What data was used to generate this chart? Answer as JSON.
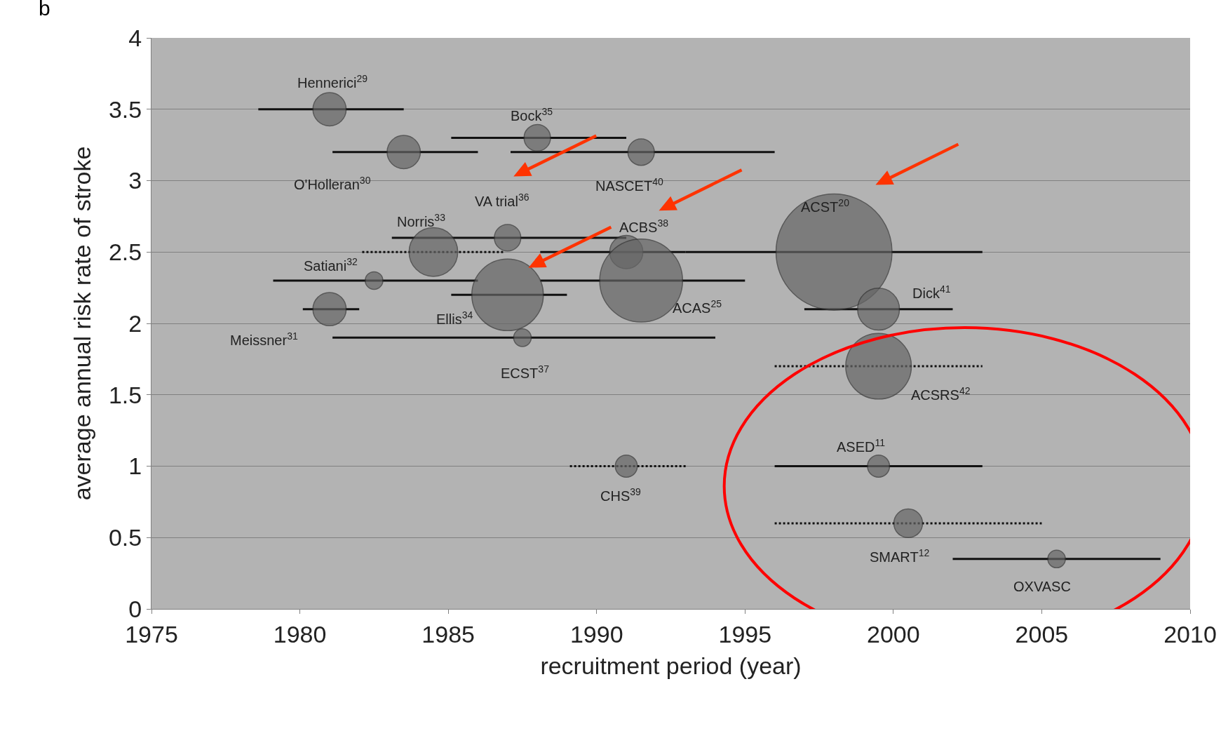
{
  "chart_data": {
    "type": "bubble",
    "xlabel": "recruitment period (year)",
    "ylabel": "average annual risk rate of stroke",
    "xlim": [
      1975,
      2010
    ],
    "xticks": [
      1975,
      1980,
      1985,
      1990,
      1995,
      2000,
      2005,
      2010
    ],
    "ylim": [
      0,
      4
    ],
    "yticks": [
      0,
      0.5,
      1,
      1.5,
      2,
      2.5,
      3,
      3.5,
      4
    ],
    "grid": "y",
    "series": [
      {
        "color": "#666666",
        "line_style": "solid",
        "x": [
          1981.0,
          1983.5,
          1988.0,
          1991.5,
          1987.0,
          1991.0,
          1998.0,
          1982.5,
          1987.0,
          1991.5,
          1981.0,
          1987.5,
          1999.5,
          1999.5,
          2005.5
        ],
        "values": [
          3.5,
          3.2,
          3.3,
          3.2,
          2.6,
          2.5,
          2.5,
          2.3,
          2.2,
          2.3,
          2.1,
          1.9,
          2.1,
          1.0,
          0.35
        ],
        "sizes": [
          0.082,
          0.082,
          0.052,
          0.052,
          0.052,
          0.082,
          1,
          0.023,
          0.38,
          0.51,
          0.082,
          0.023,
          0.13,
          0.036,
          0.023
        ],
        "xerrors": [
          [
            1978.6,
            1983.5
          ],
          [
            1981.1,
            1986.0
          ],
          [
            1985.1,
            1991.0
          ],
          [
            1987.1,
            1996.0
          ],
          [
            1983.1,
            1991.0
          ],
          [
            1988.1,
            1993.0
          ],
          [
            1993.0,
            2003.0
          ],
          [
            1979.1,
            1986.0
          ],
          [
            1985.1,
            1989.0
          ],
          [
            1988.1,
            1995.0
          ],
          [
            1980.1,
            1982.0
          ],
          [
            1981.1,
            1994.0
          ],
          [
            1997.0,
            2002.0
          ],
          [
            1996.0,
            2003.0
          ],
          [
            2002.0,
            2009.0
          ]
        ]
      },
      {
        "color": "#666666",
        "line_style": "dotted",
        "x": [
          1984.5,
          1999.5,
          1991.0,
          2000.5
        ],
        "values": [
          2.5,
          1.7,
          1.0,
          0.6
        ],
        "sizes": [
          0.176,
          0.32,
          0.036,
          0.061
        ],
        "xerrors": [
          [
            1982.1,
            1986.9
          ],
          [
            1996.0,
            2003.0
          ],
          [
            1989.1,
            1993.0
          ],
          [
            1996.0,
            2005.0
          ]
        ]
      }
    ],
    "annotations": [
      "b",
      {
        "text": "Hennerici$^{29}$",
        "x": 1981.0,
        "y": 3.5
      },
      {
        "text": "O'Holleran$^{30}$",
        "x": 1983.5,
        "y": 3.2
      },
      {
        "text": "Bock$^{35}$",
        "x": 1988.0,
        "y": 3.3
      },
      {
        "text": "NASCET$^{40}$",
        "x": 1991.5,
        "y": 3.2
      },
      {
        "text": "VA trial$^{36}$",
        "x": 1987.0,
        "y": 2.6
      },
      {
        "text": "Norris$^{33}$",
        "x": 1984.5,
        "y": 2.5
      },
      {
        "text": "ACBS$^{38}$",
        "x": 1991.0,
        "y": 2.5
      },
      {
        "text": "ACST$^{20}$",
        "x": 1998.0,
        "y": 2.5
      },
      {
        "text": "Satiani$^{32}$",
        "x": 1982.5,
        "y": 2.3
      },
      {
        "text": "Ellis$^{34}$",
        "x": 1987.0,
        "y": 2.2
      },
      {
        "text": "ACAS$^{25}$",
        "x": 1991.5,
        "y": 2.3
      },
      {
        "text": "Meissner$^{31}$",
        "x": 1981.0,
        "y": 2.1
      },
      {
        "text": "ECST$^{37}$",
        "x": 1987.5,
        "y": 1.9
      },
      {
        "text": "Dick$^{41}$",
        "x": 1999.5,
        "y": 2.1
      },
      {
        "text": "ACSRS$^{42}$",
        "x": 1999.5,
        "y": 1.7
      },
      {
        "text": "ASED$^{11}$",
        "x": 1999.5,
        "y": 1.0
      },
      {
        "text": "CHS$^{39}$",
        "x": 1991.0,
        "y": 1.0
      },
      {
        "text": "SMART$^{12}$",
        "x": 2000.5,
        "y": 0.6
      },
      {
        "text": "OXVASC",
        "x": 2005.5,
        "y": 0.35
      }
    ]
  }
}
